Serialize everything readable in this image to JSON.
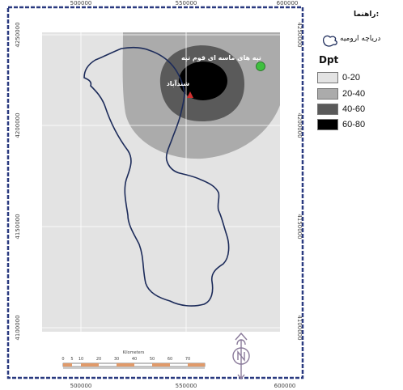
{
  "legend": {
    "title": "راهنما:",
    "lake_label": "دریاچه ارومیه",
    "field_name": "Dpt",
    "classes": [
      {
        "label": "0-20",
        "color": "#e3e3e3"
      },
      {
        "label": "20-40",
        "color": "#ababab"
      },
      {
        "label": "40-60",
        "color": "#5a5a5a"
      },
      {
        "label": "60-80",
        "color": "#000000"
      }
    ]
  },
  "map": {
    "x_ticks": [
      "500000",
      "550000",
      "600000"
    ],
    "y_ticks": [
      "4250000",
      "4200000",
      "4150000",
      "4100000"
    ],
    "place_labels": {
      "site": "تپه های ماسه ای قوم تپه",
      "town": "شندآباد"
    },
    "scale_bar": {
      "unit": "Kilometers",
      "ticks": [
        "0",
        "5",
        "10",
        "20",
        "30",
        "40",
        "50",
        "60",
        "70"
      ]
    },
    "colors": {
      "lake_outline": "#1c2b5a",
      "frame": "#2a3a80",
      "point_green": "#3fbf3f",
      "point_red": "#d03030"
    }
  }
}
